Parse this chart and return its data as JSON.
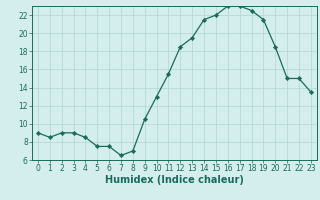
{
  "x": [
    0,
    1,
    2,
    3,
    4,
    5,
    6,
    7,
    8,
    9,
    10,
    11,
    12,
    13,
    14,
    15,
    16,
    17,
    18,
    19,
    20,
    21,
    22,
    23
  ],
  "y": [
    9.0,
    8.5,
    9.0,
    9.0,
    8.5,
    7.5,
    7.5,
    6.5,
    7.0,
    10.5,
    13.0,
    15.5,
    18.5,
    19.5,
    21.5,
    22.0,
    23.0,
    23.0,
    22.5,
    21.5,
    18.5,
    15.0,
    15.0,
    13.5
  ],
  "line_color": "#1a6b5a",
  "marker": "D",
  "marker_size": 2.2,
  "bg_color": "#d4eeee",
  "grid_color": "#b8d8d8",
  "xlabel": "Humidex (Indice chaleur)",
  "xlim": [
    -0.5,
    23.5
  ],
  "ylim": [
    6,
    23
  ],
  "yticks": [
    6,
    8,
    10,
    12,
    14,
    16,
    18,
    20,
    22
  ],
  "xticks": [
    0,
    1,
    2,
    3,
    4,
    5,
    6,
    7,
    8,
    9,
    10,
    11,
    12,
    13,
    14,
    15,
    16,
    17,
    18,
    19,
    20,
    21,
    22,
    23
  ],
  "tick_color": "#1a6b5a",
  "label_fontsize": 7,
  "tick_fontsize": 5.5
}
